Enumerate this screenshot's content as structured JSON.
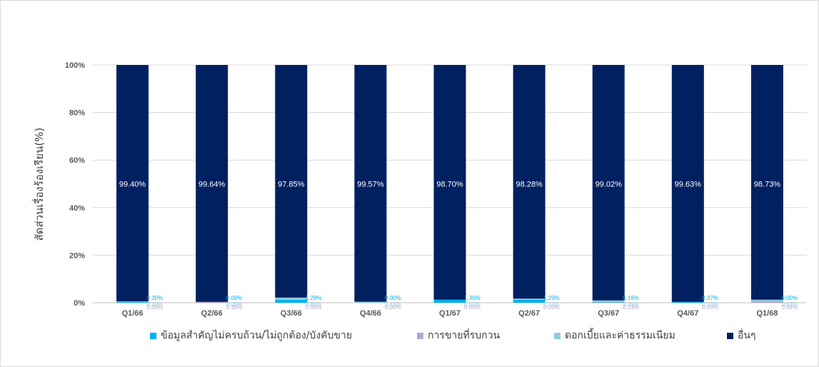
{
  "chart_data": {
    "type": "bar",
    "stacked": "percent",
    "title": "",
    "xlabel": "",
    "ylabel": "สัดส่วนเรื่องร้องเรียน(%)",
    "ylim": [
      0,
      100
    ],
    "yticks": [
      "0%",
      "20%",
      "40%",
      "60%",
      "80%",
      "100%"
    ],
    "grid": true,
    "legend_position": "bottom",
    "categories": [
      "Q1/66",
      "Q2/66",
      "Q3/66",
      "Q4/66",
      "Q1/67",
      "Q2/67",
      "Q3/67",
      "Q4/67",
      "Q1/68"
    ],
    "series": [
      {
        "name": "ข้อมูลสำคัญไม่ครบถ้วน/ไม่ถูกต้อง/บังคับขาย",
        "color": "#00b0f0",
        "values": [
          0.3,
          0.0,
          1.29,
          0.0,
          1.3,
          1.29,
          0.16,
          0.37,
          0.0
        ],
        "labels": [
          "0.30%",
          "0.00%",
          "1.29%",
          "0.00%",
          "1.30%",
          "1.29%",
          "0.16%",
          "0.37%",
          "0.00%"
        ]
      },
      {
        "name": "การขายที่รบกวน",
        "color": "#b4a7d6",
        "values": [
          0.0,
          0.36,
          0.0,
          0.0,
          0.0,
          0.0,
          0.33,
          0.0,
          0.64
        ],
        "labels": [
          "0.00%",
          "0.36%",
          "0.00%",
          "0.00%",
          "0.00%",
          "0.00%",
          "0.33%",
          "0.00%",
          "0.64%"
        ]
      },
      {
        "name": "ดอกเบี้ยและค่าธรรมเนียม",
        "color": "#92cddc",
        "values": [
          0.3,
          0.0,
          0.86,
          0.43,
          0.0,
          0.43,
          0.49,
          0.0,
          0.64
        ],
        "labels": [
          "0.30%",
          "0.00%",
          "0.86%",
          "0.43%",
          "0.00%",
          "0.43%",
          "0.49%",
          "0.00%",
          "0.64%"
        ]
      },
      {
        "name": "อื่นๆ",
        "color": "#002060",
        "values": [
          99.4,
          99.64,
          97.85,
          99.57,
          98.7,
          98.28,
          99.02,
          99.63,
          98.73
        ],
        "labels": [
          "99.40%",
          "99.64%",
          "97.85%",
          "99.57%",
          "98.70%",
          "98.28%",
          "99.02%",
          "99.63%",
          "98.73%"
        ]
      }
    ]
  }
}
